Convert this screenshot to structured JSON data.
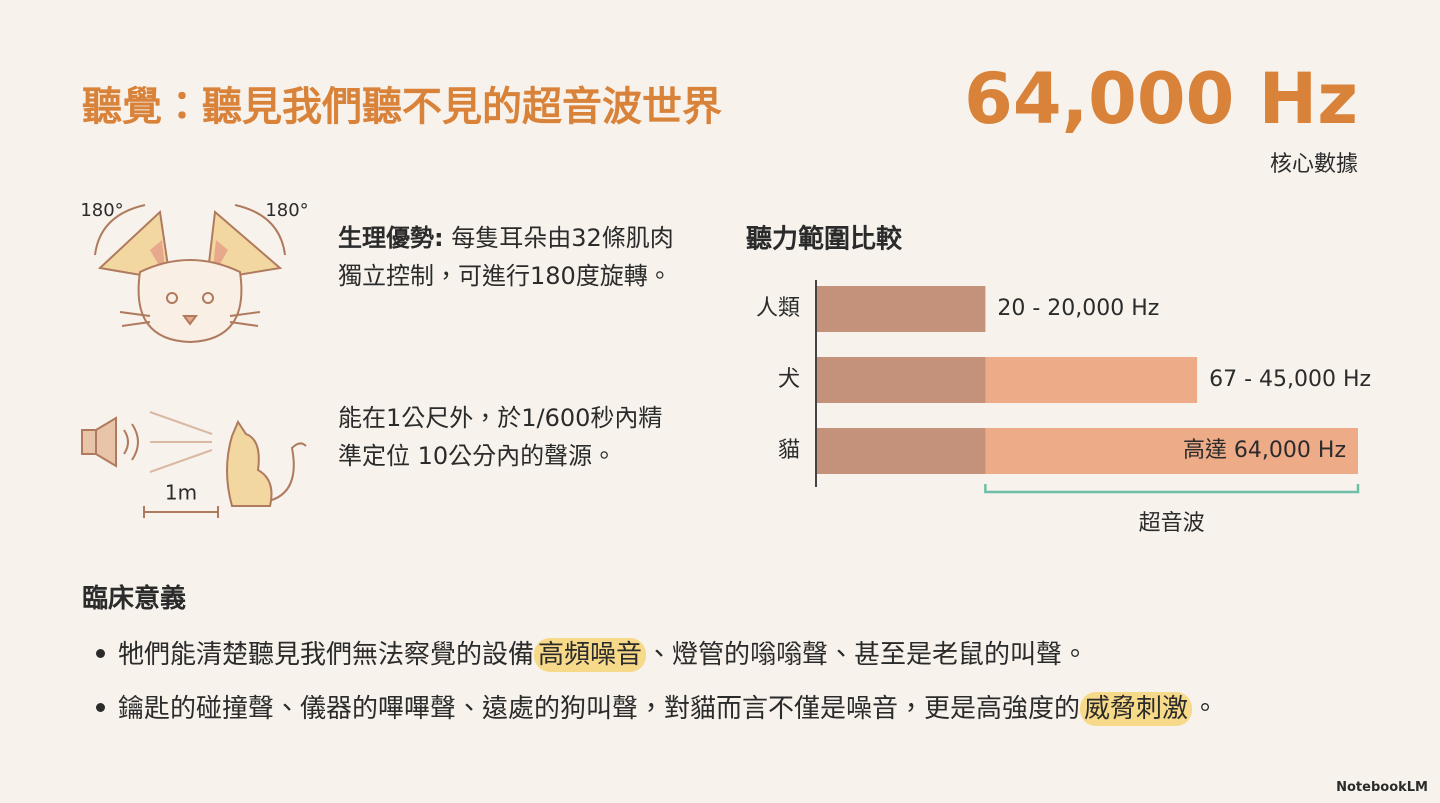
{
  "header": {
    "title": "聽覺：聽見我們聽不見的超音波世界",
    "stat": "64,000 Hz",
    "stat_caption": "核心數據"
  },
  "features": [
    {
      "icon_labels": [
        "180°",
        "180°"
      ],
      "lead": "生理優勢:",
      "text": " 每隻耳朵由32條肌肉獨立控制，可進行180度旋轉。"
    },
    {
      "icon_labels": [
        "1m"
      ],
      "lead": null,
      "text": "能在1公尺外，於1/600秒內精準定位 10公分內的聲源。"
    }
  ],
  "chart_data": {
    "type": "bar",
    "orientation": "horizontal",
    "title": "聽力範圍比較",
    "categories": [
      "人類",
      "犬",
      "貓"
    ],
    "values": [
      20000,
      45000,
      64000
    ],
    "value_labels": [
      "20 - 20,000 Hz",
      "67 - 45,000 Hz",
      "高達 64,000 Hz"
    ],
    "color": "#c4917b",
    "highlight_color": "#eeab88",
    "xlim": [
      0,
      64000
    ],
    "ultrasonic": {
      "label": "超音波",
      "range": [
        20000,
        64000
      ],
      "color": "#6dbfa8"
    }
  },
  "clinical": {
    "heading": "臨床意義",
    "bullets": [
      {
        "before": "牠們能清楚聽見我們無法察覺的設備",
        "highlight": "高頻噪音",
        "after": "、燈管的嗡嗡聲、甚至是老鼠的叫聲。"
      },
      {
        "before": "鑰匙的碰撞聲、儀器的嗶嗶聲、遠處的狗叫聲，對貓而言不僅是噪音，更是高強度的",
        "highlight": "威脅刺激",
        "after": "。"
      }
    ]
  },
  "footer": "NotebookLM"
}
